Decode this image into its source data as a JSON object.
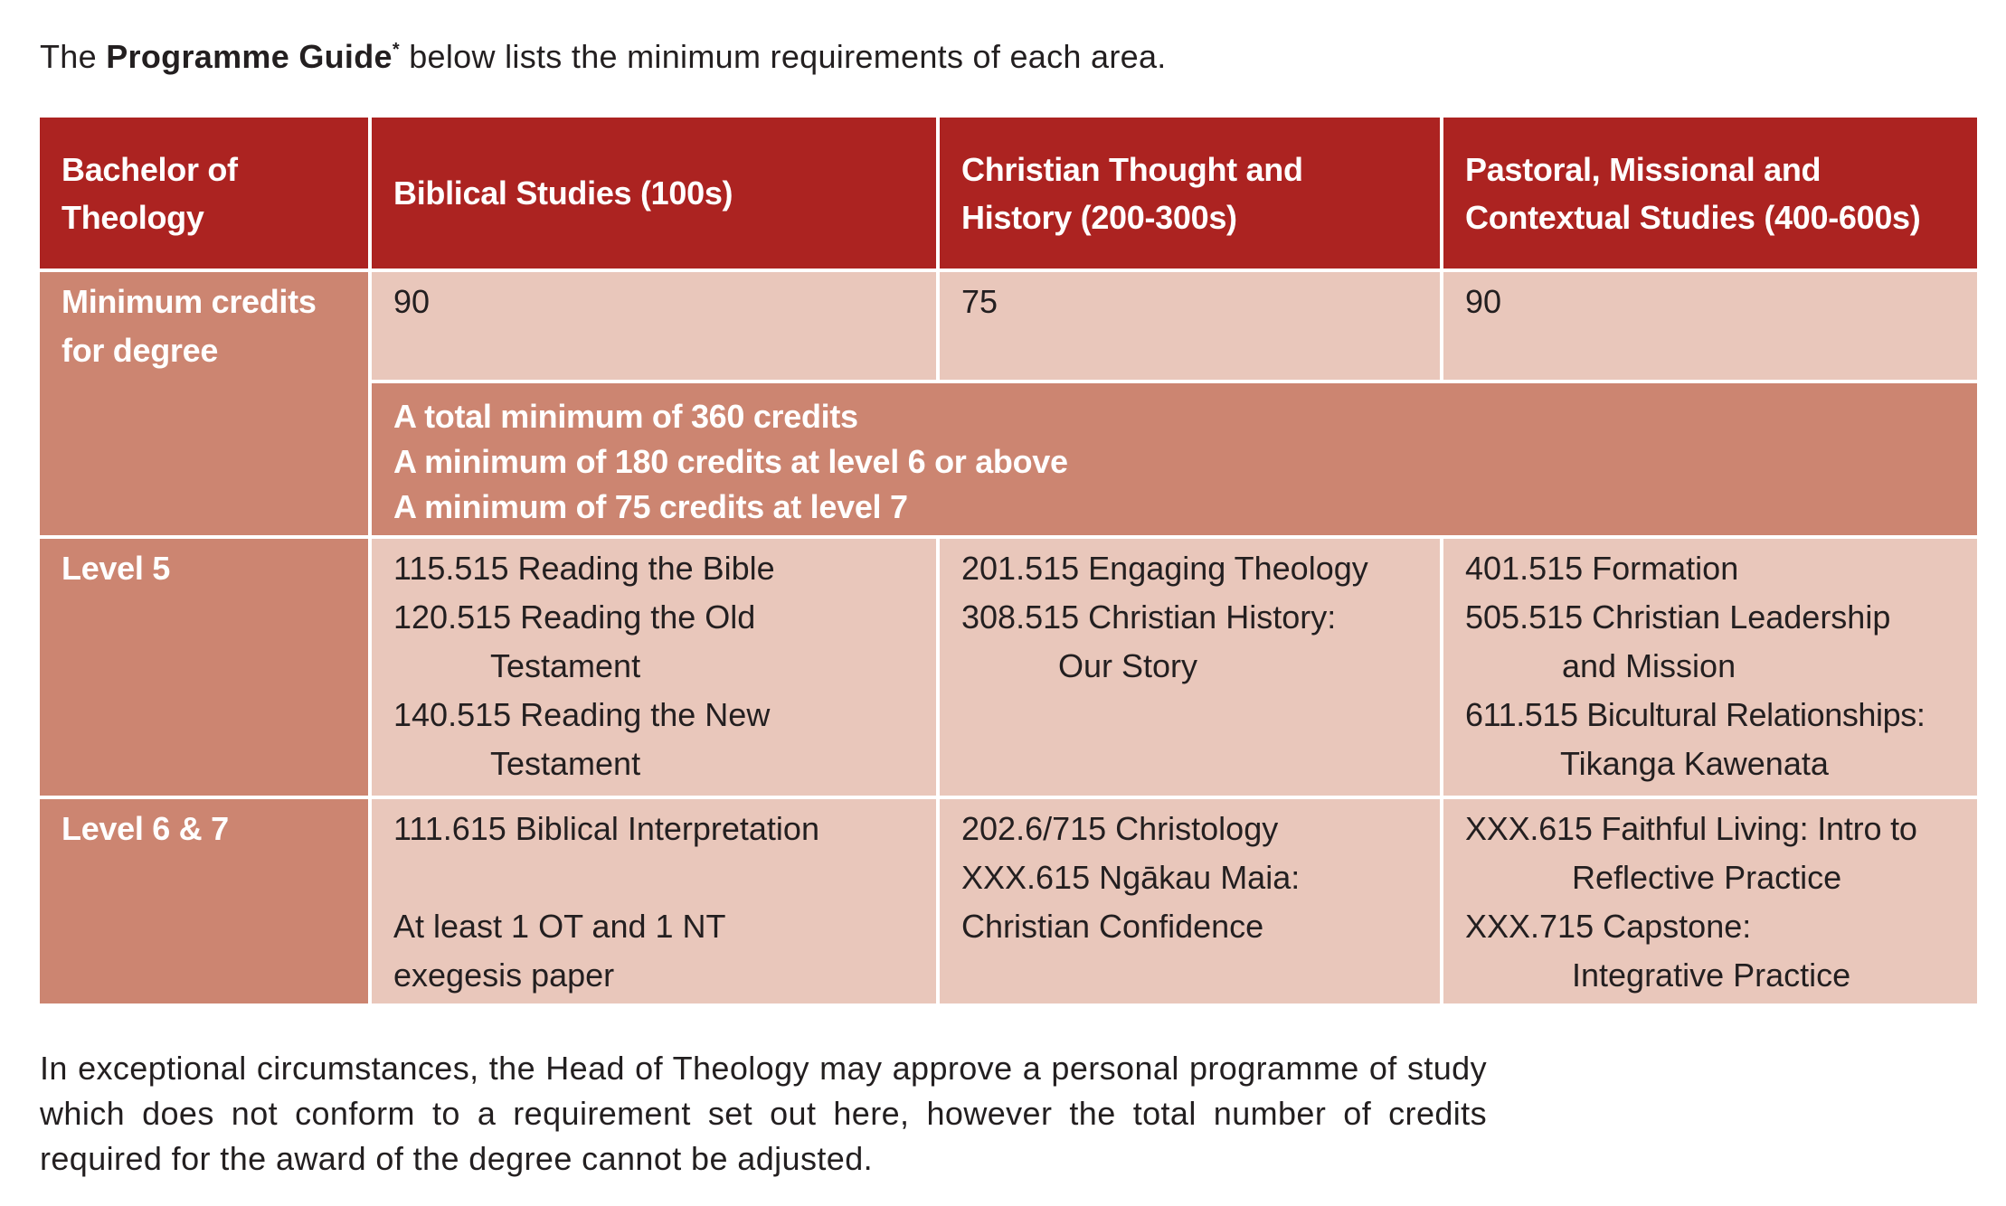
{
  "intro": {
    "prefix": "The ",
    "bold": "Programme Guide",
    "mark": "*",
    "suffix": " below lists the minimum requirements of each area."
  },
  "table": {
    "headers": {
      "corner": "Bachelor of Theology",
      "col1": "Biblical Studies (100s)",
      "col2": "Christian Thought and History (200-300s)",
      "col3": "Pastoral, Missional and Contextual Studies (400-600s)"
    },
    "minimum": {
      "label": "Minimum credits for degree",
      "col1": "90",
      "col2": "75",
      "col3": "90",
      "summary": [
        "A total minimum of 360 credits",
        "A minimum of 180 credits at level 6 or above",
        "A minimum of 75 credits at level 7"
      ]
    },
    "level5": {
      "label": "Level 5",
      "col1": [
        {
          "code": "115.515",
          "title": "Reading the Bible",
          "cont": ""
        },
        {
          "code": "120.515",
          "title": "Reading the Old",
          "cont": "Testament"
        },
        {
          "code": "140.515",
          "title": "Reading the New",
          "cont": "Testament"
        }
      ],
      "col2": [
        {
          "code": "201.515",
          "title": "Engaging Theology",
          "cont": ""
        },
        {
          "code": "308.515",
          "title": "Christian History:",
          "cont": "Our Story"
        }
      ],
      "col3": [
        {
          "code": "401.515",
          "title": "Formation",
          "cont": ""
        },
        {
          "code": "505.515",
          "title": "Christian Leadership",
          "cont": "and Mission"
        },
        {
          "code": "611.515",
          "title": "Bicultural Relationships:",
          "cont": "Tikanga Kawenata"
        }
      ]
    },
    "level67": {
      "label": "Level 6 & 7",
      "col1": {
        "course": "111.615 Biblical Interpretation",
        "note_line1": "At least 1 OT and 1 NT",
        "note_line2": "exegesis paper"
      },
      "col2": [
        "202.6/715 Christology",
        "XXX.615 Ngākau Maia:",
        "Christian Confidence"
      ],
      "col3": [
        {
          "code": "XXX.615",
          "title": "Faithful Living: Intro to",
          "cont": "Reflective Practice"
        },
        {
          "code": "XXX.715",
          "title": "Capstone:",
          "cont": "Integrative Practice"
        }
      ]
    }
  },
  "footnote": "In exceptional circumstances, the Head of Theology may approve a personal programme of study which does not conform to a requirement set out here, however the total number of credits required for the award of the degree cannot be adjusted.",
  "colors": {
    "header_red": "#ac2321",
    "salmon": "#cc8571",
    "light_pink": "#e9c7bb"
  }
}
